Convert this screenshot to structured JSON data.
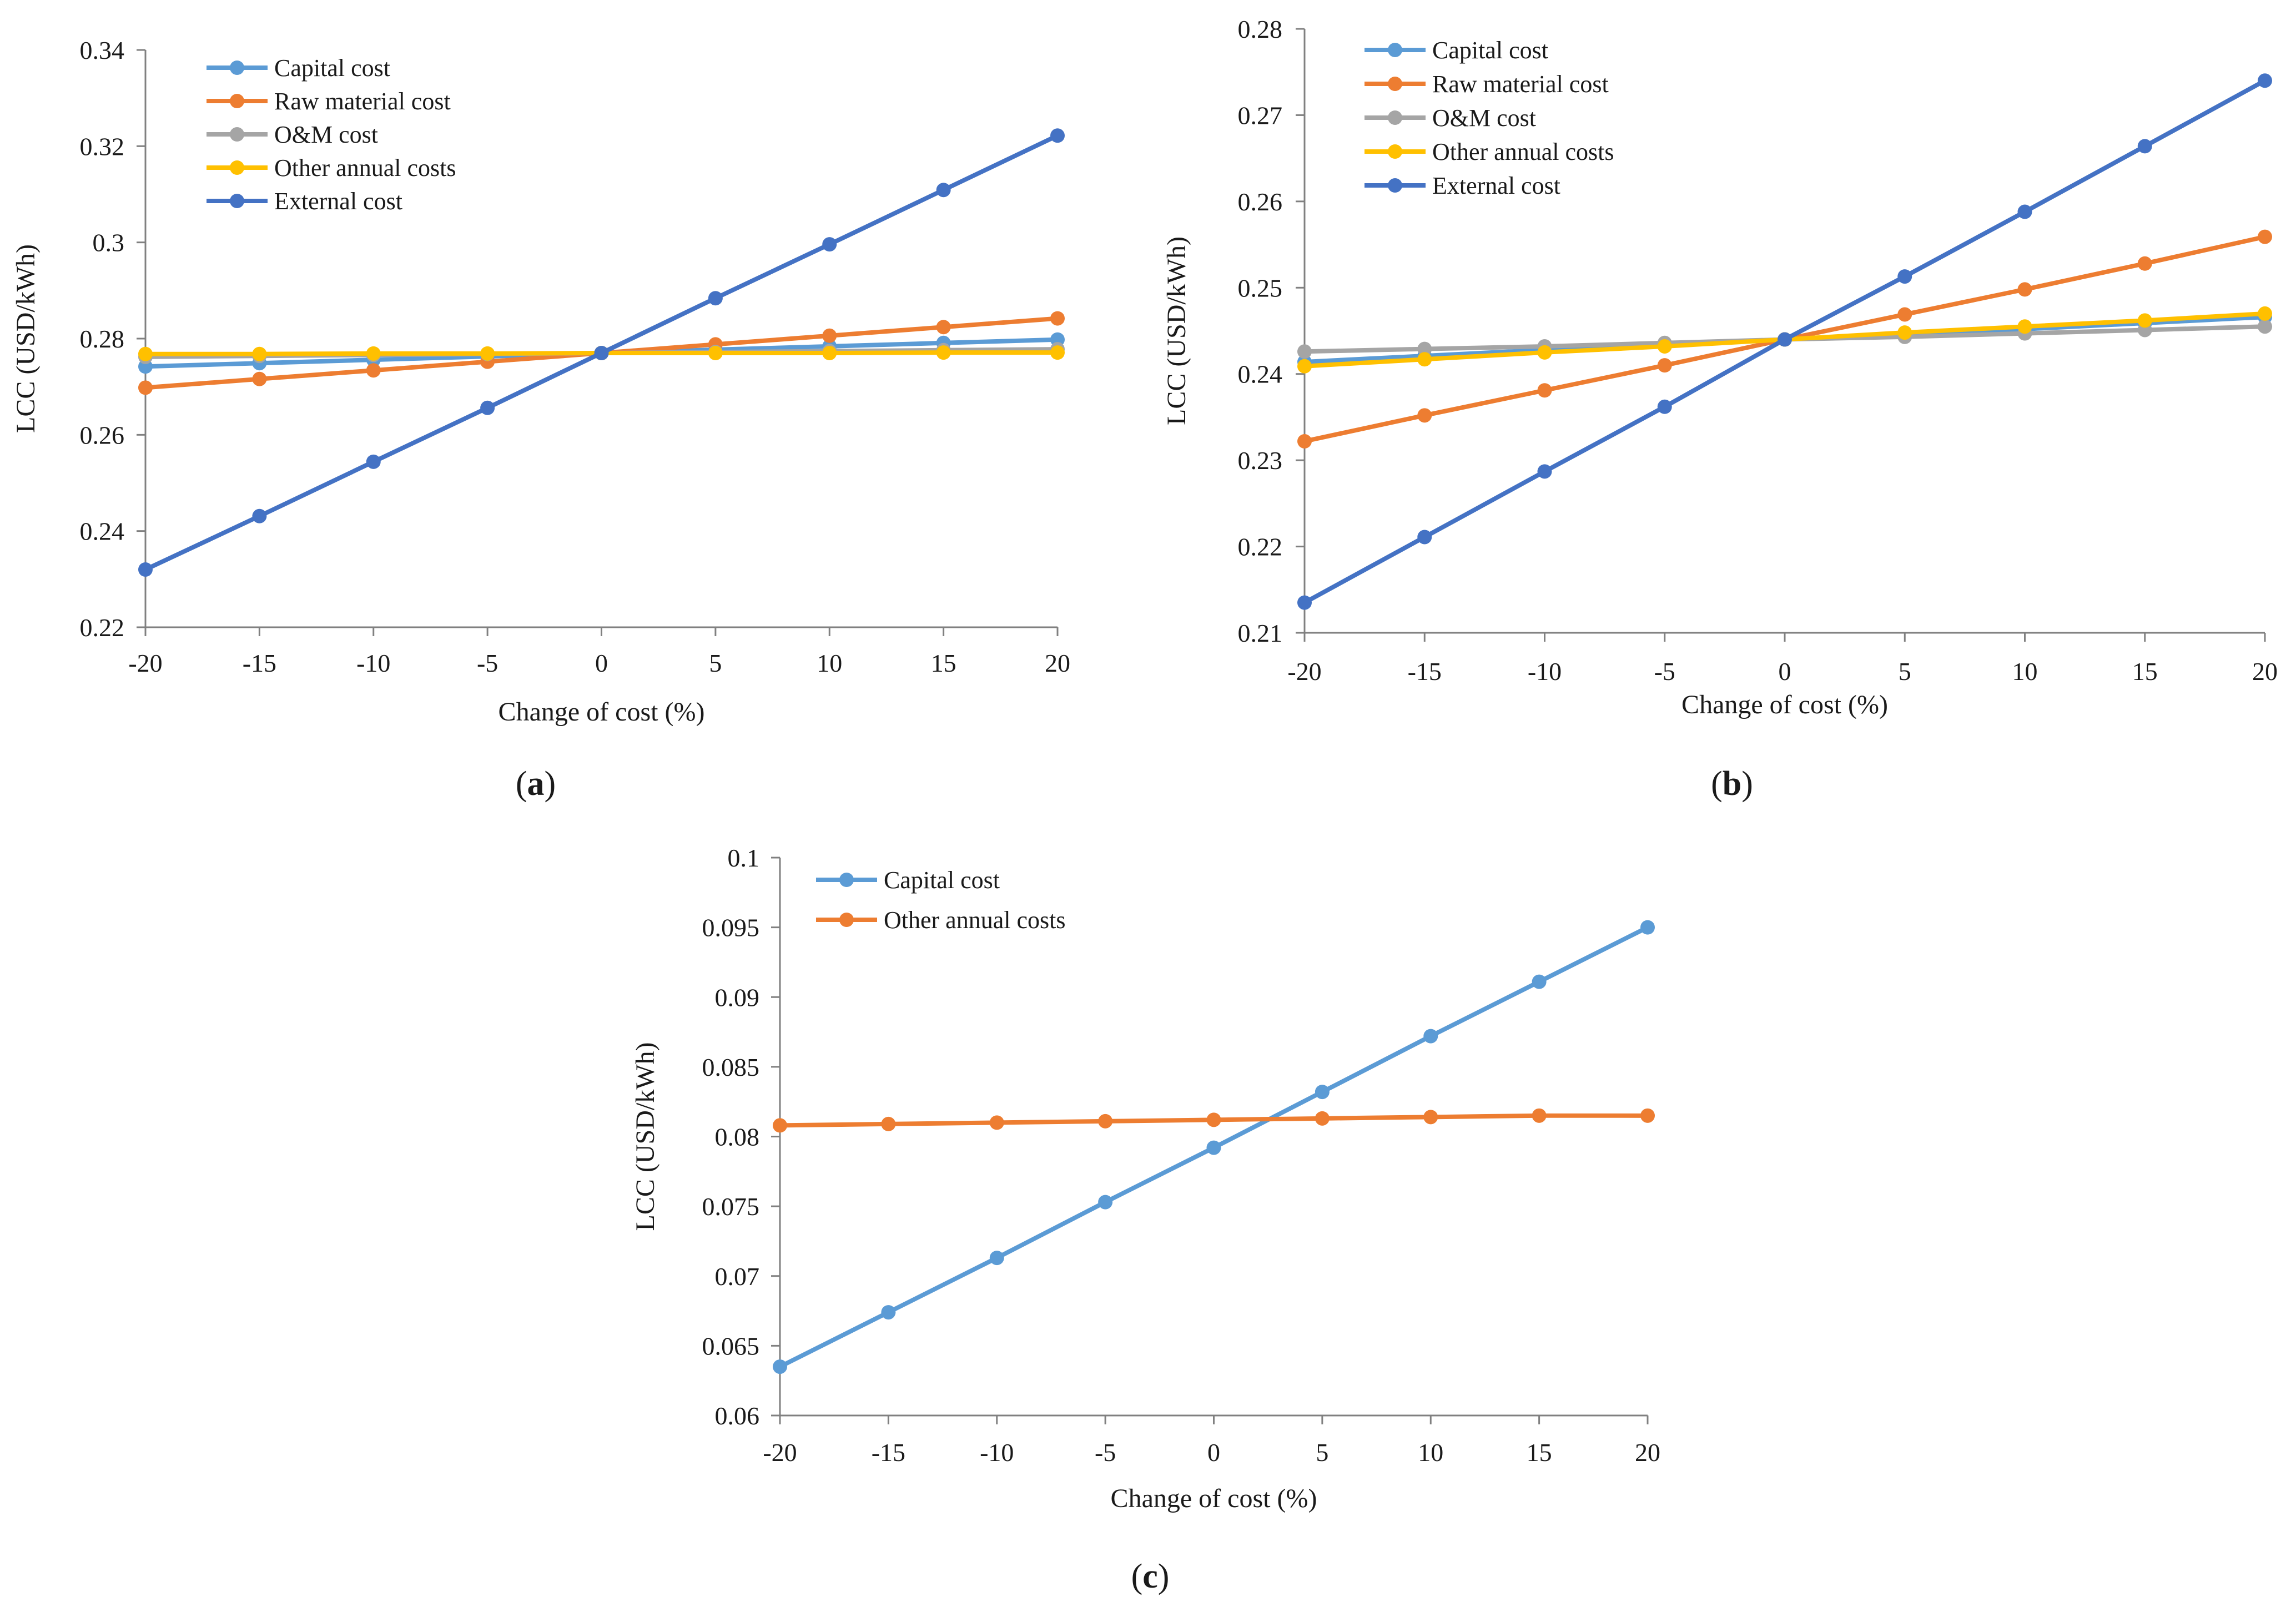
{
  "colors": {
    "capital": "#5B9BD5",
    "raw_material": "#ED7D31",
    "om": "#A5A5A5",
    "other": "#FFC000",
    "external": "#4472C4",
    "axis": "#808080"
  },
  "chart_data": [
    {
      "type": "line",
      "panel": "a",
      "panel_label": {
        "open": "(",
        "letter": "a",
        "close": ")"
      },
      "xlabel": "Change of cost (%)",
      "ylabel": "LCC (USD/kWh)",
      "x": [
        -20,
        -15,
        -10,
        -5,
        0,
        5,
        10,
        15,
        20
      ],
      "ylim": [
        0.22,
        0.34
      ],
      "yticks": [
        0.22,
        0.24,
        0.26,
        0.28,
        0.3,
        0.32,
        0.34
      ],
      "ytick_labels": [
        "0.22",
        "0.24",
        "0.26",
        "0.28",
        "0.3",
        "0.32",
        "0.34"
      ],
      "legend_position": "top-left",
      "series": [
        {
          "name": "Capital cost",
          "color": "#5B9BD5",
          "values": [
            0.2742,
            0.2749,
            0.2756,
            0.2763,
            0.277,
            0.2777,
            0.2784,
            0.2791,
            0.2798
          ]
        },
        {
          "name": "Raw material cost",
          "color": "#ED7D31",
          "values": [
            0.2698,
            0.2716,
            0.2734,
            0.2752,
            0.277,
            0.2788,
            0.2806,
            0.2824,
            0.2842
          ]
        },
        {
          "name": "O&M cost",
          "color": "#A5A5A5",
          "values": [
            0.2762,
            0.2764,
            0.2766,
            0.2768,
            0.277,
            0.2772,
            0.2774,
            0.2776,
            0.2778
          ]
        },
        {
          "name": "Other annual costs",
          "color": "#FFC000",
          "values": [
            0.2768,
            0.2768,
            0.2769,
            0.2769,
            0.277,
            0.277,
            0.277,
            0.2771,
            0.2771
          ]
        },
        {
          "name": "External cost",
          "color": "#4472C4",
          "values": [
            0.232,
            0.2431,
            0.2544,
            0.2656,
            0.277,
            0.2884,
            0.2996,
            0.3109,
            0.3222
          ]
        }
      ]
    },
    {
      "type": "line",
      "panel": "b",
      "panel_label": {
        "open": "(",
        "letter": "b",
        "close": ")"
      },
      "xlabel": "Change of cost (%)",
      "ylabel": "LCC (USD/kWh)",
      "x": [
        -20,
        -15,
        -10,
        -5,
        0,
        5,
        10,
        15,
        20
      ],
      "ylim": [
        0.21,
        0.28
      ],
      "yticks": [
        0.21,
        0.22,
        0.23,
        0.24,
        0.25,
        0.26,
        0.27,
        0.28
      ],
      "ytick_labels": [
        "0.21",
        "0.22",
        "0.23",
        "0.24",
        "0.25",
        "0.26",
        "0.27",
        "0.28"
      ],
      "legend_position": "top-left",
      "series": [
        {
          "name": "Capital cost",
          "color": "#5B9BD5",
          "values": [
            0.2414,
            0.2421,
            0.2428,
            0.2434,
            0.244,
            0.2446,
            0.2452,
            0.2459,
            0.2466
          ]
        },
        {
          "name": "Raw material cost",
          "color": "#ED7D31",
          "values": [
            0.2322,
            0.2352,
            0.2381,
            0.241,
            0.244,
            0.2469,
            0.2498,
            0.2528,
            0.2559
          ]
        },
        {
          "name": "O&M cost",
          "color": "#A5A5A5",
          "values": [
            0.2426,
            0.2429,
            0.2432,
            0.2436,
            0.244,
            0.2443,
            0.2447,
            0.2451,
            0.2455
          ]
        },
        {
          "name": "Other annual costs",
          "color": "#FFC000",
          "values": [
            0.2409,
            0.2417,
            0.2425,
            0.2432,
            0.244,
            0.2448,
            0.2455,
            0.2462,
            0.247
          ]
        },
        {
          "name": "External cost",
          "color": "#4472C4",
          "values": [
            0.2135,
            0.2211,
            0.2287,
            0.2362,
            0.244,
            0.2513,
            0.2588,
            0.2664,
            0.274
          ]
        }
      ]
    },
    {
      "type": "line",
      "panel": "c",
      "panel_label": {
        "open": "(",
        "letter": "c",
        "close": ")"
      },
      "xlabel": "Change of cost (%)",
      "ylabel": "LCC (USD/kWh)",
      "x": [
        -20,
        -15,
        -10,
        -5,
        0,
        5,
        10,
        15,
        20
      ],
      "ylim": [
        0.06,
        0.1
      ],
      "yticks": [
        0.06,
        0.065,
        0.07,
        0.075,
        0.08,
        0.085,
        0.09,
        0.095,
        0.1
      ],
      "ytick_labels": [
        "0.06",
        "0.065",
        "0.07",
        "0.075",
        "0.08",
        "0.085",
        "0.09",
        "0.095",
        "0.1"
      ],
      "legend_position": "top-left",
      "series": [
        {
          "name": "Capital cost",
          "color": "#5B9BD5",
          "values": [
            0.0635,
            0.0674,
            0.0713,
            0.0753,
            0.0792,
            0.0832,
            0.0872,
            0.0911,
            0.095
          ]
        },
        {
          "name": "Other annual costs",
          "color": "#ED7D31",
          "values": [
            0.0808,
            0.0809,
            0.081,
            0.0811,
            0.0812,
            0.0813,
            0.0814,
            0.0815,
            0.0815
          ]
        }
      ]
    }
  ]
}
